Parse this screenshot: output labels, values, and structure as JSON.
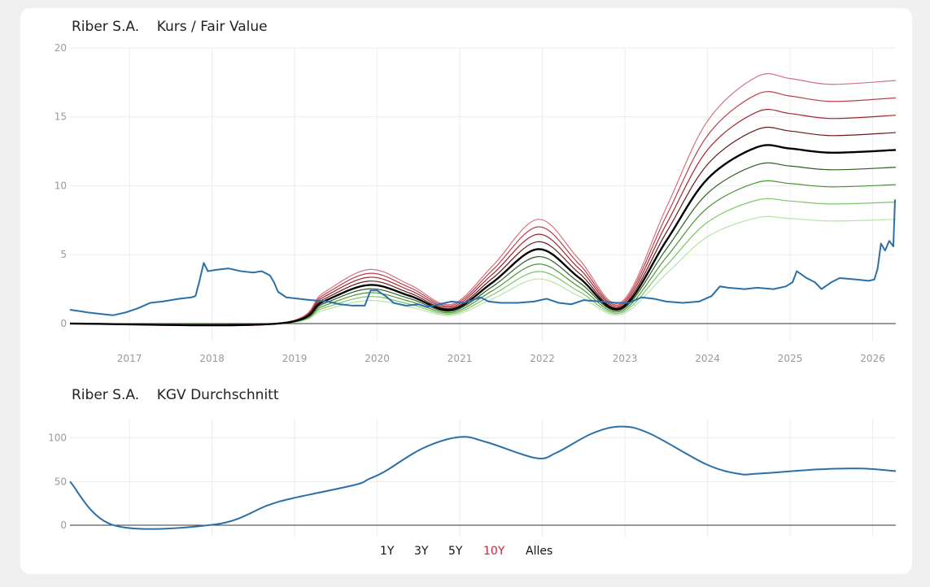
{
  "chart_data": [
    {
      "type": "line",
      "title": "Riber S.A.",
      "subtitle": "Kurs / Fair Value",
      "xlim": [
        2016.28,
        2026.28
      ],
      "ylim": [
        -1.3,
        20
      ],
      "x_ticks": [
        "2017",
        "2018",
        "2019",
        "2020",
        "2021",
        "2022",
        "2023",
        "2024",
        "2025",
        "2026"
      ],
      "y_ticks": [
        "0",
        "5",
        "10",
        "15",
        "20"
      ],
      "grid": true,
      "series": [
        {
          "role": "kurs",
          "color": "#2a6fa8",
          "x": [
            2016.28,
            2016.4,
            2016.5,
            2016.65,
            2016.8,
            2016.95,
            2017.1,
            2017.25,
            2017.4,
            2017.6,
            2017.75,
            2017.8,
            2017.84,
            2017.9,
            2017.95,
            2018.05,
            2018.2,
            2018.35,
            2018.5,
            2018.6,
            2018.7,
            2018.75,
            2018.8,
            2018.9,
            2019.05,
            2019.2,
            2019.4,
            2019.55,
            2019.7,
            2019.85,
            2019.92,
            2020.0,
            2020.1,
            2020.2,
            2020.35,
            2020.5,
            2020.6,
            2020.75,
            2020.9,
            2021.05,
            2021.25,
            2021.35,
            2021.5,
            2021.7,
            2021.9,
            2022.05,
            2022.2,
            2022.35,
            2022.5,
            2022.7,
            2022.9,
            2023.05,
            2023.2,
            2023.35,
            2023.5,
            2023.7,
            2023.9,
            2024.05,
            2024.15,
            2024.25,
            2024.45,
            2024.6,
            2024.8,
            2024.95,
            2025.03,
            2025.08,
            2025.2,
            2025.3,
            2025.38,
            2025.5,
            2025.6,
            2025.8,
            2025.95,
            2026.02,
            2026.06,
            2026.1,
            2026.15,
            2026.2,
            2026.25,
            2026.27
          ],
          "y": [
            1.0,
            0.9,
            0.8,
            0.7,
            0.6,
            0.8,
            1.1,
            1.5,
            1.6,
            1.8,
            1.9,
            2.0,
            2.9,
            4.4,
            3.8,
            3.9,
            4.0,
            3.8,
            3.7,
            3.8,
            3.5,
            3.0,
            2.3,
            1.9,
            1.8,
            1.7,
            1.6,
            1.4,
            1.3,
            1.3,
            2.4,
            2.4,
            2.0,
            1.5,
            1.3,
            1.4,
            1.2,
            1.4,
            1.6,
            1.5,
            1.9,
            1.6,
            1.5,
            1.5,
            1.6,
            1.8,
            1.5,
            1.4,
            1.7,
            1.6,
            1.5,
            1.5,
            1.9,
            1.8,
            1.6,
            1.5,
            1.6,
            2.0,
            2.7,
            2.6,
            2.5,
            2.6,
            2.5,
            2.7,
            3.0,
            3.8,
            3.3,
            3.0,
            2.5,
            3.0,
            3.3,
            3.2,
            3.1,
            3.2,
            4.0,
            5.8,
            5.3,
            6.0,
            5.6,
            9.0
          ]
        },
        {
          "role": "fair-value-base",
          "color": "#000000",
          "x": [
            2016.28,
            2018.8,
            2019.35,
            2019.9,
            2020.4,
            2020.9,
            2021.4,
            2021.95,
            2022.45,
            2022.95,
            2023.5,
            2024.0,
            2024.6,
            2025.0,
            2025.5,
            2026.28
          ],
          "y": [
            0,
            0,
            1.6,
            2.8,
            2.0,
            1.0,
            3.0,
            5.4,
            3.3,
            1.1,
            6.0,
            10.5,
            12.8,
            12.7,
            12.4,
            12.6
          ]
        }
      ],
      "fair_value_multipliers": [
        {
          "factor": 1.4,
          "color": "#d2727e"
        },
        {
          "factor": 1.3,
          "color": "#b8404c"
        },
        {
          "factor": 1.2,
          "color": "#a02430"
        },
        {
          "factor": 1.1,
          "color": "#6a1818"
        },
        {
          "factor": 1.0,
          "color": "#000000"
        },
        {
          "factor": 0.9,
          "color": "#2e5e22"
        },
        {
          "factor": 0.8,
          "color": "#4a9436"
        },
        {
          "factor": 0.7,
          "color": "#7ec468"
        },
        {
          "factor": 0.6,
          "color": "#b6e4a6"
        }
      ]
    },
    {
      "type": "line",
      "title": "Riber S.A.",
      "subtitle": "KGV Durchschnitt",
      "xlim": [
        2016.28,
        2026.28
      ],
      "ylim": [
        -13,
        122
      ],
      "y_ticks": [
        "0",
        "50",
        "100"
      ],
      "grid": true,
      "series": [
        {
          "color": "#2a6fa8",
          "x": [
            2016.28,
            2016.81,
            2018.04,
            2018.68,
            2018.98,
            2019.72,
            2019.9,
            2020.1,
            2020.55,
            2021.0,
            2021.33,
            2021.92,
            2022.17,
            2022.6,
            2022.95,
            2023.3,
            2023.98,
            2024.37,
            2024.6,
            2025.35,
            2025.87,
            2026.28
          ],
          "y": [
            50,
            0,
            1,
            23,
            31,
            46,
            53,
            62,
            88,
            101,
            95,
            77,
            83,
            105,
            113,
            105,
            70,
            59,
            59,
            64,
            65,
            62
          ]
        }
      ]
    }
  ],
  "range_buttons": [
    "1Y",
    "3Y",
    "5Y",
    "10Y",
    "Alles"
  ],
  "active_range": "10Y",
  "accent_color": "#c0283a"
}
